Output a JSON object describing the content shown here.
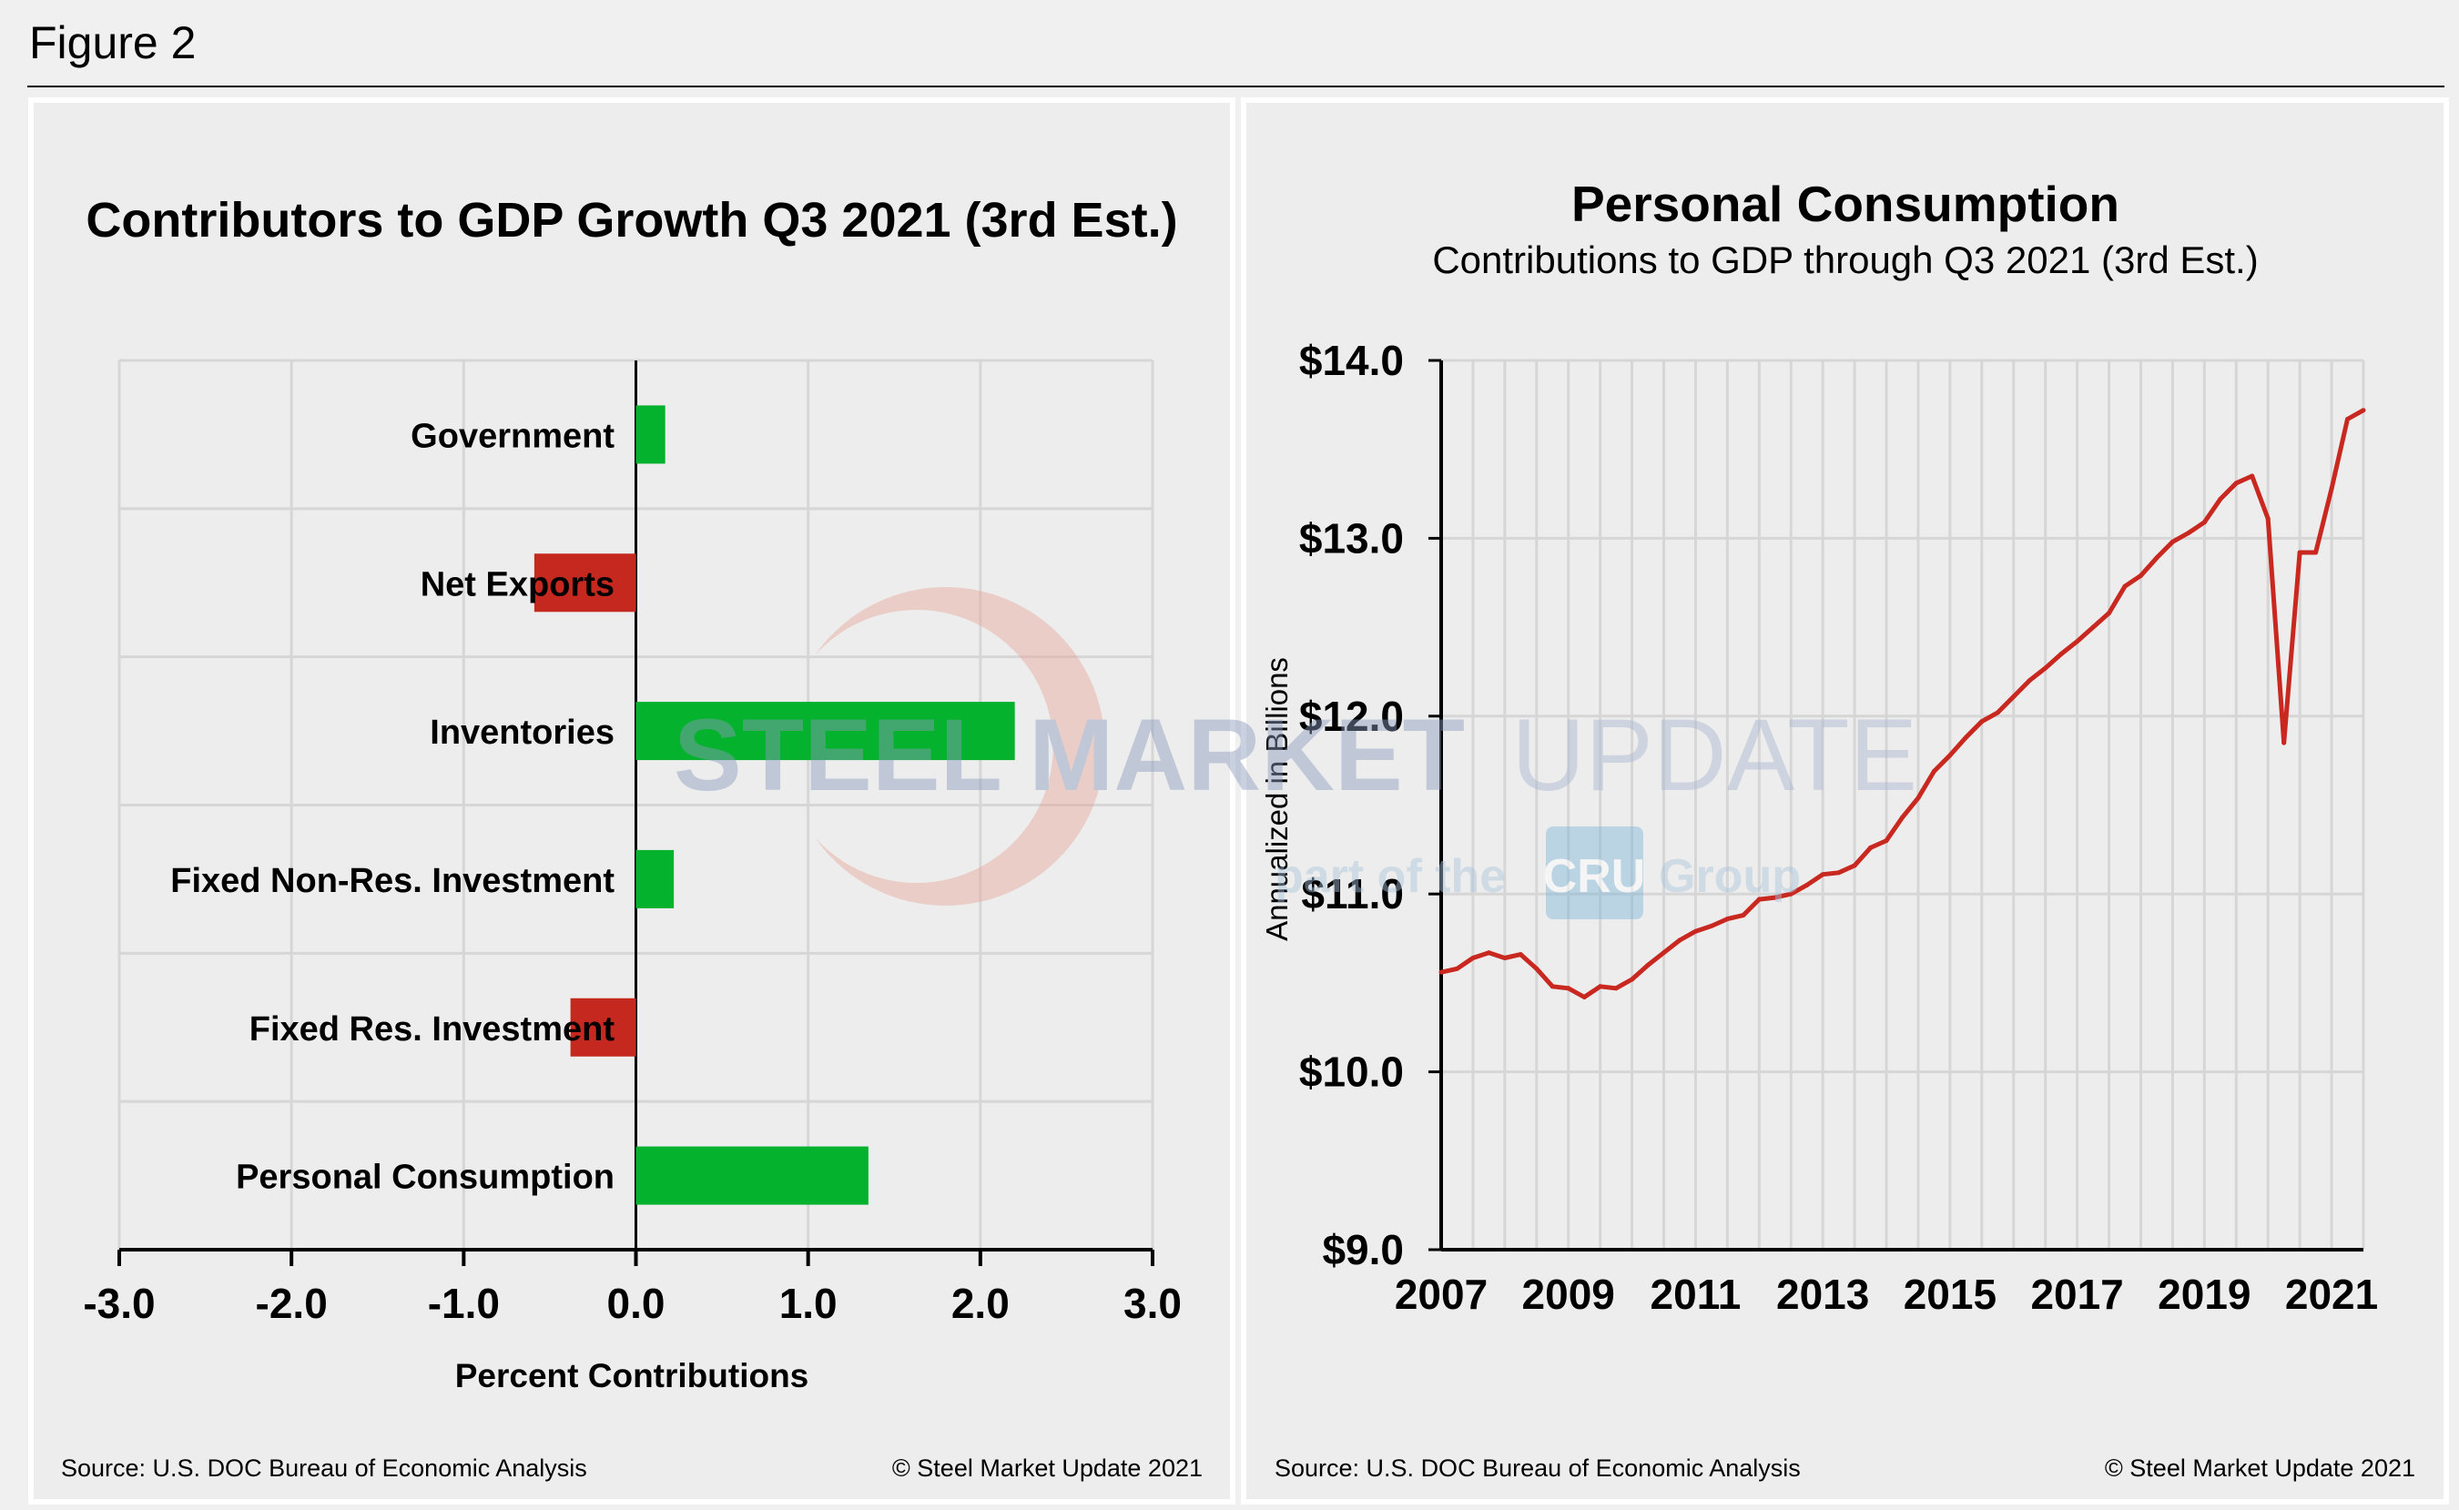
{
  "figure_label": "Figure 2",
  "watermark": {
    "line1_bold": "STEEL MARKET",
    "line1_light": "UPDATE",
    "line2_a": "part of the",
    "line2_logo": "CRU",
    "line2_b": "Group"
  },
  "colors": {
    "positive": "#05b22e",
    "negative": "#c4281f",
    "line": "#c8281f",
    "grid": "#d6d6d6",
    "panel": "#ededed"
  },
  "chart_data": [
    {
      "type": "bar",
      "orientation": "horizontal",
      "title": "Contributors to GDP Growth Q3 2021 (3rd Est.)",
      "xlabel": "Percent Contributions",
      "ylabel": "",
      "xlim": [
        -3.0,
        3.0
      ],
      "xticks": [
        "-3.0",
        "-2.0",
        "-1.0",
        "0.0",
        "1.0",
        "2.0",
        "3.0"
      ],
      "grid": true,
      "categories": [
        "Government",
        "Net Exports",
        "Inventories",
        "Fixed Non-Res. Investment",
        "Fixed Res. Investment",
        "Personal Consumption"
      ],
      "values": [
        0.17,
        -0.59,
        2.2,
        0.22,
        -0.38,
        1.35
      ],
      "source": "Source: U.S. DOC Bureau of Economic Analysis",
      "copyright": "© Steel Market Update 2021"
    },
    {
      "type": "line",
      "title": "Personal Consumption",
      "subtitle": "Contributions to GDP through Q3 2021 (3rd Est.)",
      "ylabel": "Annualized in Billions",
      "xlabel": "",
      "ylim": [
        9.0,
        14.0
      ],
      "yticks": [
        "$9.0",
        "$10.0",
        "$11.0",
        "$12.0",
        "$13.0",
        "$14.0"
      ],
      "xticks": [
        "2007",
        "2009",
        "2011",
        "2013",
        "2015",
        "2017",
        "2019",
        "2021"
      ],
      "x_start": "2007 Q1",
      "x_end": "2021 Q3",
      "frequency": "quarterly",
      "grid": true,
      "values": [
        10.56,
        10.58,
        10.64,
        10.67,
        10.64,
        10.66,
        10.58,
        10.48,
        10.47,
        10.42,
        10.48,
        10.47,
        10.52,
        10.6,
        10.67,
        10.74,
        10.79,
        10.82,
        10.86,
        10.88,
        10.97,
        10.98,
        11.0,
        11.05,
        11.11,
        11.12,
        11.16,
        11.26,
        11.3,
        11.43,
        11.54,
        11.69,
        11.78,
        11.88,
        11.97,
        12.02,
        12.11,
        12.2,
        12.27,
        12.35,
        12.42,
        12.5,
        12.58,
        12.73,
        12.79,
        12.89,
        12.98,
        13.03,
        13.09,
        13.22,
        13.31,
        13.35,
        13.11,
        11.85,
        12.92,
        12.92,
        13.28,
        13.67,
        13.72
      ],
      "source": "Source: U.S. DOC Bureau of Economic Analysis",
      "copyright": "© Steel Market Update 2021"
    }
  ]
}
